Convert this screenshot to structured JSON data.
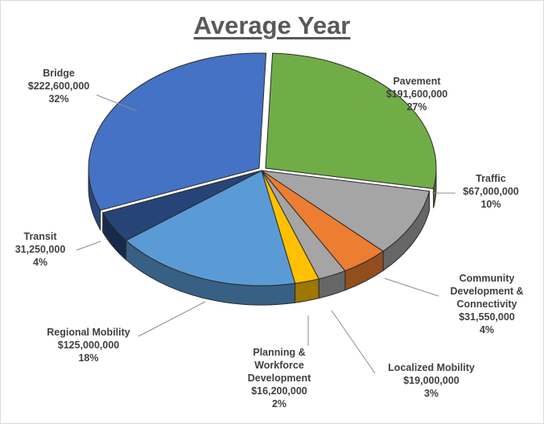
{
  "chart_data": {
    "type": "pie",
    "title": "Average Year",
    "slices": [
      {
        "key": "pavement",
        "name": "Pavement",
        "value": 191600000,
        "value_label": "$191,600,000",
        "percent_label": "27%",
        "color": "#70ad47"
      },
      {
        "key": "traffic",
        "name": "Traffic",
        "value": 67000000,
        "value_label": "$67,000,000",
        "percent_label": "10%",
        "color": "#a5a5a5"
      },
      {
        "key": "community",
        "name": "Community Development & Connectivity",
        "name_lines": [
          "Community",
          "Development &",
          "Connectivity"
        ],
        "value": 31550000,
        "value_label": "$31,550,000",
        "percent_label": "4%",
        "color": "#ed7d31"
      },
      {
        "key": "localized",
        "name": "Localized Mobility",
        "value": 19000000,
        "value_label": "$19,000,000",
        "percent_label": "3%",
        "color": "#a5a5a5"
      },
      {
        "key": "planning",
        "name": "Planning & Workforce Development",
        "name_lines": [
          "Planning &",
          "Workforce",
          "Development"
        ],
        "value": 16200000,
        "value_label": "$16,200,000",
        "percent_label": "2%",
        "color": "#ffc000"
      },
      {
        "key": "regional",
        "name": "Regional Mobility",
        "value": 125000000,
        "value_label": "$125,000,000",
        "percent_label": "18%",
        "color": "#5b9bd5"
      },
      {
        "key": "transit",
        "name": "Transit",
        "value": 31250000,
        "value_label": "31,250,000",
        "percent_label": "4%",
        "color": "#264478"
      },
      {
        "key": "bridge",
        "name": "Bridge",
        "value": 222600000,
        "value_label": "$222,600,000",
        "percent_label": "32%",
        "color": "#4472c4"
      }
    ]
  }
}
